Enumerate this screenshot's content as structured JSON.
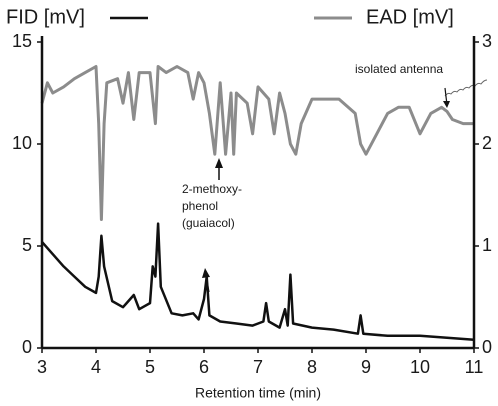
{
  "chart_data": {
    "type": "line",
    "x_label": "Retention time (min)",
    "xlim": [
      3,
      11
    ],
    "xticks": [
      3,
      4,
      5,
      6,
      7,
      8,
      9,
      10,
      11
    ],
    "ylim": [
      0,
      15
    ],
    "yticks": [
      0,
      5,
      10,
      15
    ],
    "y2lim": [
      0,
      3
    ],
    "y2ticks": [
      0,
      1,
      2,
      3
    ],
    "annotations": [
      [
        "isolated antenna"
      ],
      [
        "2-methoxy-",
        "phenol",
        "(guaiacol)"
      ]
    ],
    "series": [
      {
        "name": "FID [mV]",
        "color": "#111111",
        "x": [
          3.0,
          3.2,
          3.4,
          3.6,
          3.8,
          4.0,
          4.05,
          4.1,
          4.15,
          4.3,
          4.5,
          4.7,
          4.8,
          5.0,
          5.05,
          5.1,
          5.15,
          5.2,
          5.4,
          5.6,
          5.8,
          5.9,
          6.0,
          6.05,
          6.1,
          6.3,
          6.6,
          6.9,
          7.1,
          7.15,
          7.2,
          7.4,
          7.5,
          7.55,
          7.6,
          7.65,
          8.0,
          8.4,
          8.85,
          8.9,
          8.95,
          9.4,
          10.0,
          10.5,
          11.0
        ],
        "values": [
          5.2,
          4.6,
          4.0,
          3.5,
          3.0,
          2.7,
          3.5,
          5.5,
          4.0,
          2.3,
          2.0,
          2.6,
          1.9,
          2.2,
          4.0,
          3.5,
          6.1,
          3.0,
          1.7,
          1.6,
          1.7,
          1.4,
          2.4,
          3.5,
          1.6,
          1.3,
          1.2,
          1.1,
          1.3,
          2.2,
          1.3,
          1.0,
          1.9,
          1.1,
          3.6,
          1.2,
          1.0,
          0.9,
          0.7,
          1.6,
          0.7,
          0.6,
          0.6,
          0.5,
          0.4
        ]
      },
      {
        "name": "EAD [mV]",
        "color": "#8c8c8c",
        "axis": "y2",
        "x": [
          3.0,
          3.1,
          3.2,
          3.4,
          3.6,
          3.8,
          4.0,
          4.05,
          4.1,
          4.15,
          4.2,
          4.4,
          4.5,
          4.6,
          4.7,
          4.8,
          5.0,
          5.1,
          5.15,
          5.3,
          5.5,
          5.7,
          5.8,
          5.9,
          6.0,
          6.1,
          6.2,
          6.3,
          6.4,
          6.5,
          6.55,
          6.6,
          6.8,
          6.9,
          7.0,
          7.2,
          7.3,
          7.4,
          7.5,
          7.6,
          7.7,
          7.8,
          8.0,
          8.5,
          8.8,
          8.9,
          9.0,
          9.2,
          9.4,
          9.6,
          9.8,
          10.0,
          10.2,
          10.4,
          10.5,
          10.6,
          10.8,
          11.0
        ],
        "values": [
          2.4,
          2.6,
          2.5,
          2.56,
          2.64,
          2.7,
          2.76,
          2.2,
          1.26,
          2.2,
          2.6,
          2.64,
          2.4,
          2.7,
          2.24,
          2.7,
          2.7,
          2.2,
          2.76,
          2.7,
          2.76,
          2.7,
          2.44,
          2.7,
          2.6,
          2.3,
          1.9,
          2.6,
          1.9,
          2.5,
          1.9,
          2.5,
          2.4,
          2.1,
          2.56,
          2.44,
          2.1,
          2.5,
          2.3,
          2.0,
          1.9,
          2.2,
          2.44,
          2.44,
          2.3,
          2.0,
          1.9,
          2.1,
          2.3,
          2.36,
          2.36,
          2.1,
          2.3,
          2.36,
          2.32,
          2.24,
          2.2,
          2.2
        ]
      }
    ]
  }
}
